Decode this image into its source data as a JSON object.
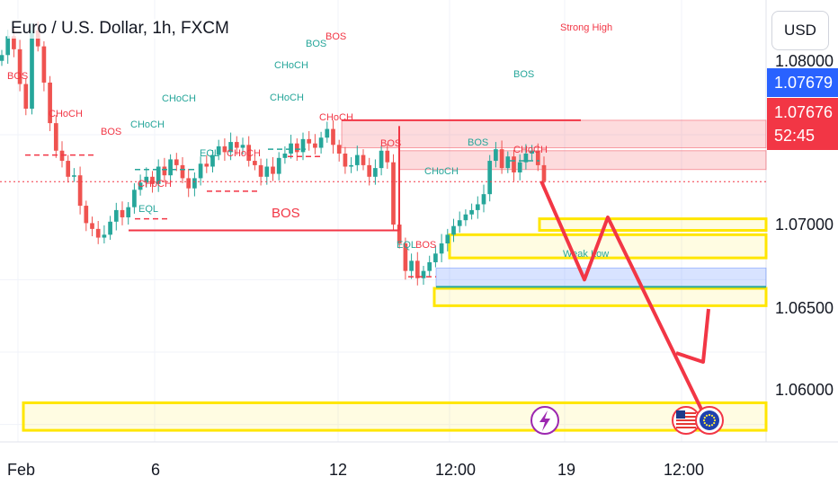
{
  "header": {
    "title": "Euro / U.S. Dollar, 1h, FXCM",
    "currency": "USD"
  },
  "price_tags": {
    "blue_value": "1.07679",
    "red_value": "1.07676",
    "red_countdown": "52:45"
  },
  "price_axis": [
    "1.08000",
    "1.07000",
    "1.06500",
    "1.06000"
  ],
  "time_axis": [
    "Feb",
    "6",
    "12",
    "12:00",
    "19",
    "12:00"
  ],
  "colors": {
    "bull": "#26a69a",
    "bear": "#ef5350",
    "structure_red": "#f23645",
    "zone_yellow": "#ffeb3b",
    "zone_blue": "#bbd0ff",
    "zone_red": "#f8c8cc",
    "arrow": "#f23645"
  },
  "events": [
    "lightning-icon",
    "us-flag-icon",
    "eu-flag-icon"
  ],
  "chart_data": {
    "type": "candlestick",
    "title": "Euro / U.S. Dollar, 1h, FXCM",
    "ylabel": "USD",
    "ylim": [
      1.0588,
      1.0893
    ],
    "price_ticks": [
      1.08,
      1.07,
      1.065,
      1.06
    ],
    "time_ticks": [
      "Feb",
      "6",
      "12",
      "12:00",
      "19",
      "12:00"
    ],
    "last_price": 1.07676,
    "ask_price": 1.07679,
    "close_path": [
      [
        1.0855,
        1.0868,
        1.0859,
        1.0835,
        1.0818,
        1.0872,
        1.0861,
        1.0836,
        1.0808,
        1.0789,
        1.0782,
        1.0771,
        1.0772,
        1.0751,
        1.0739,
        1.0735,
        1.0729,
        1.0731,
        1.074,
        1.0748,
        1.0743,
        1.075,
        1.0762,
        1.0767,
        1.0771,
        1.0766,
        1.0778,
        1.0772,
        1.0783,
        1.0779,
        1.077,
        1.0763,
        1.077,
        1.078,
        1.0778,
        1.0786,
        1.0792,
        1.0788,
        1.0795,
        1.0791,
        1.0793,
        1.0782,
        1.0779,
        1.0771,
        1.0778,
        1.0773,
        1.0784,
        1.0787,
        1.0794,
        1.0788,
        1.0797,
        1.0794,
        1.0791,
        1.0798,
        1.0804,
        1.0793,
        1.0787,
        1.0778,
        1.0779,
        1.0786,
        1.0779,
        1.0771,
        1.0777,
        1.0789,
        1.0781,
        1.0738,
        1.0725,
        1.0706,
        1.0713,
        1.0701,
        1.0706,
        1.0712,
        1.0718,
        1.0725,
        1.0731,
        1.0737,
        1.0741,
        1.0745,
        1.0748,
        1.0752,
        1.0759,
        1.0782,
        1.079,
        1.0777,
        1.0785,
        1.0774,
        1.0781,
        1.0787,
        1.0789,
        1.0779,
        1.0768
      ]
    ],
    "levels": [
      {
        "label": "Strong High",
        "value": 1.081,
        "color": "#f23645"
      },
      {
        "label": "BOS",
        "value": 1.0734,
        "color": "#f23645"
      },
      {
        "label": "Weak Low",
        "value": 1.0695,
        "color": "#26a69a"
      }
    ],
    "zones": [
      {
        "type": "supply",
        "from": 1.0791,
        "to": 1.081,
        "color": "#f8c8cc"
      },
      {
        "type": "supply",
        "from": 1.0776,
        "to": 1.0789,
        "color": "#f8c8cc"
      },
      {
        "type": "demand",
        "from": 1.0742,
        "to": 1.0734,
        "color": "#ffeb3b"
      },
      {
        "type": "demand",
        "from": 1.0731,
        "to": 1.0715,
        "color": "#ffeb3b"
      },
      {
        "type": "demand",
        "from": 1.0708,
        "to": 1.0695,
        "color": "#bbd0ff"
      },
      {
        "type": "demand",
        "from": 1.0694,
        "to": 1.0682,
        "color": "#ffeb3b"
      },
      {
        "type": "target",
        "from": 1.0615,
        "to": 1.0596,
        "color": "#ffeb3b"
      }
    ],
    "annotations": [
      {
        "text": "BOS",
        "color": "#f23645"
      },
      {
        "text": "CHoCH",
        "color": "#f23645"
      },
      {
        "text": "BOS",
        "color": "#f23645"
      },
      {
        "text": "CHoCH",
        "color": "#f23645"
      },
      {
        "text": "EQL",
        "color": "#26a69a"
      },
      {
        "text": "CHoCH",
        "color": "#26a69a"
      },
      {
        "text": "CHoCH",
        "color": "#26a69a"
      },
      {
        "text": "EQL",
        "color": "#26a69a"
      },
      {
        "text": "CHoCH",
        "color": "#f23645"
      },
      {
        "text": "CHoCH",
        "color": "#26a69a"
      },
      {
        "text": "BOS",
        "color": "#f23645"
      },
      {
        "text": "BOS",
        "color": "#26a69a"
      },
      {
        "text": "CHoCH",
        "color": "#f23645"
      },
      {
        "text": "BOS",
        "color": "#f23645"
      },
      {
        "text": "BOS",
        "color": "#f23645"
      },
      {
        "text": "EQL",
        "color": "#26a69a"
      },
      {
        "text": "BOS",
        "color": "#f23645"
      },
      {
        "text": "CHoCH",
        "color": "#26a69a"
      },
      {
        "text": "BOS",
        "color": "#26a69a"
      },
      {
        "text": "BOS",
        "color": "#26a69a"
      },
      {
        "text": "CHoCH",
        "color": "#f23645"
      },
      {
        "text": "Strong High",
        "color": "#f23645"
      },
      {
        "text": "Weak Low",
        "color": "#26a69a"
      },
      {
        "text": "CHoCH",
        "color": "#26a69a"
      }
    ],
    "projection": [
      1.0768,
      1.07,
      1.0743,
      1.0608
    ],
    "grid": true
  }
}
